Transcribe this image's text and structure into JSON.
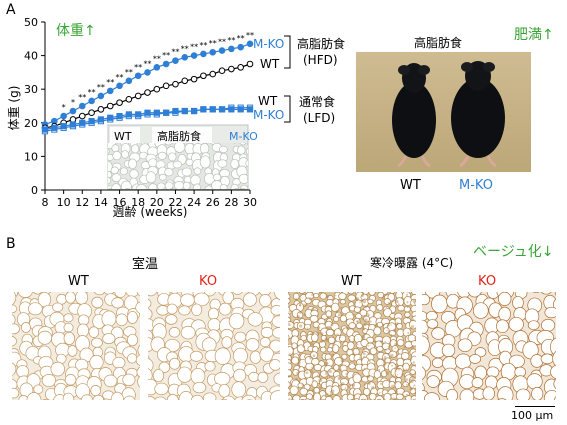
{
  "panel_a": {
    "letter": "A",
    "weight_up_label": "体重↑",
    "obesity_up_label": "肥満↑",
    "photo_title": "高脂肪食",
    "photo_labels": [
      "WT",
      "M-KO"
    ],
    "hfd_label": "高脂肪食",
    "hfd_abbr": "(HFD)",
    "lfd_label": "通常食",
    "lfd_abbr": "(LFD)",
    "series_labels": {
      "hfd_mko": "M-KO",
      "hfd_wt": "WT",
      "lfd_wt": "WT",
      "lfd_mko": "M-KO"
    },
    "inset": {
      "left": "WT",
      "title": "高脂肪食",
      "right": "M-KO"
    }
  },
  "panel_b": {
    "letter": "B",
    "beige_down_label": "ベージュ化↓",
    "room_temp": "室温",
    "cold": "寒冷曝露 (4°C)",
    "labels": [
      "WT",
      "KO",
      "WT",
      "KO"
    ],
    "scale_bar": "100 μm"
  },
  "colors": {
    "green": "#3aa535",
    "blue": "#2f7fd6",
    "red": "#e0241b",
    "tissue_bg": "#f5efe4",
    "tissue_line": "#b88a52"
  },
  "chart_data": {
    "type": "line",
    "xlabel": "週齢 (weeks)",
    "ylabel": "体重 (g)",
    "xlim": [
      8,
      30
    ],
    "ylim": [
      0,
      50
    ],
    "xticks": [
      8,
      10,
      12,
      14,
      16,
      18,
      20,
      22,
      24,
      26,
      28,
      30
    ],
    "yticks": [
      0,
      10,
      20,
      30,
      40,
      50
    ],
    "x": [
      8,
      9,
      10,
      11,
      12,
      13,
      14,
      15,
      16,
      17,
      18,
      19,
      20,
      21,
      22,
      23,
      24,
      25,
      26,
      27,
      28,
      29,
      30
    ],
    "series": [
      {
        "name": "M-KO",
        "values": [
          19.5,
          20.5,
          22,
          23.5,
          25,
          26.5,
          28,
          29.5,
          31,
          32.5,
          34,
          35,
          36.5,
          37.5,
          38.5,
          39.5,
          40,
          40.5,
          41,
          41.5,
          42,
          42.5,
          43.5
        ]
      },
      {
        "name": "WT",
        "values": [
          18.5,
          19,
          20,
          21,
          22,
          23,
          24,
          25,
          26,
          27,
          28,
          29,
          30,
          31,
          31.5,
          32.5,
          33,
          34,
          34.5,
          35.5,
          36,
          36.5,
          37.5
        ]
      },
      {
        "name": "WT",
        "values": [
          17.5,
          18,
          18.5,
          19,
          19.5,
          20,
          20.5,
          21,
          21.5,
          22,
          22,
          22.5,
          22.5,
          23,
          23,
          23.5,
          23.5,
          24,
          24,
          24,
          24.5,
          24.5,
          24.5
        ]
      },
      {
        "name": "M-KO",
        "values": [
          18,
          18.5,
          19,
          19.5,
          20,
          20.5,
          21,
          21.5,
          22,
          22.5,
          22.5,
          23,
          23,
          23,
          23.5,
          23.5,
          23.5,
          24,
          24,
          24,
          24,
          24,
          24
        ]
      }
    ],
    "significance": [
      "",
      "",
      "*",
      "*",
      "**",
      "**",
      "**",
      "**",
      "**",
      "**",
      "**",
      "**",
      "**",
      "**",
      "**",
      "**",
      "**",
      "**",
      "**",
      "**",
      "**",
      "**",
      "**"
    ]
  }
}
